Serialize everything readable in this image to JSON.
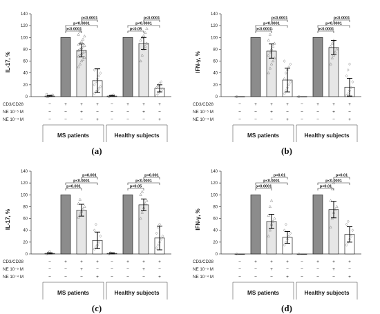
{
  "figure": {
    "row_labels": [
      "CD3/CD28",
      "NE 10⁻⁵ M",
      "NE 10⁻⁴ M"
    ],
    "groups": [
      "MS patients",
      "Healthy subjects"
    ],
    "conditions": [
      {
        "cd3": "−",
        "ne5": "−",
        "ne4": "−"
      },
      {
        "cd3": "+",
        "ne5": "−",
        "ne4": "−"
      },
      {
        "cd3": "+",
        "ne5": "+",
        "ne4": "−"
      },
      {
        "cd3": "+",
        "ne5": "−",
        "ne4": "+"
      }
    ],
    "colors": {
      "control": "#ffffff",
      "stimulated": "#8c8c8c",
      "ne5": "#e6e6e6",
      "ne4": "#ffffff"
    }
  },
  "chart_data": [
    {
      "panel": "(a)",
      "type": "bar",
      "ylabel": "IL-17, %",
      "ylim": [
        0,
        140
      ],
      "yticks": [
        0,
        20,
        40,
        60,
        80,
        100,
        120,
        140
      ],
      "categories": [
        "MS patients",
        "Healthy subjects"
      ],
      "series": [
        {
          "values": [
            1,
            1
          ],
          "errors": [
            1,
            1
          ]
        },
        {
          "values": [
            100,
            100
          ],
          "errors": [
            0,
            0
          ]
        },
        {
          "values": [
            78,
            90
          ],
          "errors": [
            11,
            10
          ]
        },
        {
          "values": [
            27,
            14
          ],
          "errors": [
            20,
            6
          ]
        }
      ],
      "points": [
        [
          [
            0,
            0,
            1,
            2,
            3,
            4
          ]
        ],
        [
          [
            100
          ]
        ],
        [
          [
            50,
            55,
            60,
            63,
            66,
            68,
            70,
            72,
            74,
            76,
            78,
            80,
            82,
            84,
            86,
            88,
            90,
            93,
            97,
            102,
            105,
            110
          ]
        ],
        [
          [
            5,
            8,
            10,
            14,
            17,
            20,
            25,
            30,
            35,
            40,
            45
          ]
        ]
      ],
      "points_hs": [
        [
          [
            0,
            1,
            2,
            3
          ]
        ],
        [
          [
            100
          ]
        ],
        [
          [
            60,
            70,
            80,
            85,
            90,
            95,
            100,
            103,
            108,
            115
          ]
        ],
        [
          [
            2,
            5,
            8,
            10,
            13,
            15,
            18,
            22,
            25
          ]
        ]
      ],
      "markers": [
        "circle",
        "circle",
        "triangle",
        "diamond"
      ],
      "significance": [
        {
          "group": 0,
          "from": 1,
          "to": 2,
          "label": "p<0.0001",
          "level": 0
        },
        {
          "group": 0,
          "from": 1,
          "to": 3,
          "label": "p<0.0001",
          "level": 1
        },
        {
          "group": 0,
          "from": 2,
          "to": 3,
          "label": "p<0.0001",
          "level": 2
        },
        {
          "group": 1,
          "from": 1,
          "to": 2,
          "label": "p<0.05",
          "level": 0
        },
        {
          "group": 1,
          "from": 1,
          "to": 3,
          "label": "p<0.0001",
          "level": 1
        },
        {
          "group": 1,
          "from": 2,
          "to": 3,
          "label": "p<0.0001",
          "level": 2
        }
      ]
    },
    {
      "panel": "(b)",
      "type": "bar",
      "ylabel": "IFN-γ, %",
      "ylim": [
        0,
        140
      ],
      "yticks": [
        0,
        20,
        40,
        60,
        80,
        100,
        120,
        140
      ],
      "categories": [
        "MS patients",
        "Healthy subjects"
      ],
      "series": [
        {
          "values": [
            0,
            0
          ],
          "errors": [
            0,
            0
          ]
        },
        {
          "values": [
            100,
            100
          ],
          "errors": [
            0,
            0
          ]
        },
        {
          "values": [
            77,
            83
          ],
          "errors": [
            12,
            12
          ]
        },
        {
          "values": [
            28,
            16
          ],
          "errors": [
            20,
            15
          ]
        }
      ],
      "points": [
        [
          [
            0
          ]
        ],
        [
          [
            100
          ]
        ],
        [
          [
            40,
            48,
            55,
            60,
            65,
            70,
            75,
            80,
            85,
            90,
            95,
            105,
            115
          ]
        ],
        [
          [
            5,
            10,
            15,
            20,
            25,
            30,
            40,
            45,
            50,
            55,
            60
          ]
        ]
      ],
      "points_hs": [
        [
          [
            0
          ]
        ],
        [
          [
            100
          ]
        ],
        [
          [
            55,
            65,
            70,
            75,
            80,
            85,
            90,
            95
          ]
        ],
        [
          [
            2,
            5,
            10,
            15,
            25,
            35,
            45,
            55
          ]
        ]
      ],
      "markers": [
        "circle",
        "circle",
        "triangle",
        "diamond"
      ],
      "significance": [
        {
          "group": 0,
          "from": 1,
          "to": 2,
          "label": "p<0.0001",
          "level": 0
        },
        {
          "group": 0,
          "from": 1,
          "to": 3,
          "label": "p<0.0001",
          "level": 1
        },
        {
          "group": 0,
          "from": 2,
          "to": 3,
          "label": "p<0.0001",
          "level": 2
        },
        {
          "group": 1,
          "from": 1,
          "to": 2,
          "label": "p<0.0001",
          "level": 0
        },
        {
          "group": 1,
          "from": 1,
          "to": 3,
          "label": "p<0.0001",
          "level": 1
        },
        {
          "group": 1,
          "from": 2,
          "to": 3,
          "label": "p<0.0001",
          "level": 2
        }
      ]
    },
    {
      "panel": "(c)",
      "type": "bar",
      "ylabel": "IL-17, %",
      "ylim": [
        0,
        140
      ],
      "yticks": [
        0,
        20,
        40,
        60,
        80,
        100,
        120,
        140
      ],
      "categories": [
        "MS patients",
        "Healthy subjects"
      ],
      "series": [
        {
          "values": [
            1,
            1
          ],
          "errors": [
            1,
            1
          ]
        },
        {
          "values": [
            100,
            100
          ],
          "errors": [
            0,
            0
          ]
        },
        {
          "values": [
            74,
            83
          ],
          "errors": [
            10,
            10
          ]
        },
        {
          "values": [
            23,
            27
          ],
          "errors": [
            14,
            20
          ]
        }
      ],
      "points": [
        [
          [
            0,
            2,
            4
          ]
        ],
        [
          [
            100
          ]
        ],
        [
          [
            62,
            68,
            72,
            76,
            80,
            85,
            92
          ]
        ],
        [
          [
            8,
            12,
            15,
            20,
            30,
            40,
            50
          ]
        ]
      ],
      "points_hs": [
        [
          [
            0,
            2
          ]
        ],
        [
          [
            100
          ]
        ],
        [
          [
            60,
            70,
            78,
            85,
            90,
            100,
            105
          ]
        ],
        [
          [
            10,
            15,
            20,
            25,
            30,
            35,
            45,
            50
          ]
        ]
      ],
      "markers": [
        "circle",
        "circle",
        "triangle",
        "diamond"
      ],
      "significance": [
        {
          "group": 0,
          "from": 1,
          "to": 2,
          "label": "p<0.001",
          "level": 0
        },
        {
          "group": 0,
          "from": 1,
          "to": 3,
          "label": "p<0.0001",
          "level": 1
        },
        {
          "group": 0,
          "from": 2,
          "to": 3,
          "label": "p<0.001",
          "level": 2
        },
        {
          "group": 1,
          "from": 1,
          "to": 2,
          "label": "p<0.05",
          "level": 0
        },
        {
          "group": 1,
          "from": 1,
          "to": 3,
          "label": "p<0.0001",
          "level": 1
        },
        {
          "group": 1,
          "from": 2,
          "to": 3,
          "label": "p<0.001",
          "level": 2
        }
      ]
    },
    {
      "panel": "(d)",
      "type": "bar",
      "ylabel": "IFN-γ, %",
      "ylim": [
        0,
        140
      ],
      "yticks": [
        0,
        20,
        40,
        60,
        80,
        100,
        120,
        140
      ],
      "categories": [
        "MS patients",
        "Healthy subjects"
      ],
      "series": [
        {
          "values": [
            0,
            0
          ],
          "errors": [
            0,
            0
          ]
        },
        {
          "values": [
            100,
            100
          ],
          "errors": [
            0,
            0
          ]
        },
        {
          "values": [
            55,
            75
          ],
          "errors": [
            12,
            14
          ]
        },
        {
          "values": [
            28,
            33
          ],
          "errors": [
            10,
            13
          ]
        }
      ],
      "points": [
        [
          [
            0
          ]
        ],
        [
          [
            100
          ]
        ],
        [
          [
            30,
            40,
            50,
            55,
            60,
            65,
            80,
            90
          ]
        ],
        [
          [
            15,
            20,
            25,
            30,
            35,
            40,
            50
          ]
        ]
      ],
      "points_hs": [
        [
          [
            0
          ]
        ],
        [
          [
            100
          ]
        ],
        [
          [
            45,
            60,
            70,
            75,
            80,
            90,
            110,
            120
          ]
        ],
        [
          [
            15,
            20,
            25,
            30,
            40,
            50,
            55
          ]
        ]
      ],
      "markers": [
        "circle",
        "circle",
        "triangle",
        "diamond"
      ],
      "significance": [
        {
          "group": 0,
          "from": 1,
          "to": 2,
          "label": "p<0.0001",
          "level": 0
        },
        {
          "group": 0,
          "from": 1,
          "to": 3,
          "label": "p<0.0001",
          "level": 1
        },
        {
          "group": 0,
          "from": 2,
          "to": 3,
          "label": "p<0.01",
          "level": 2
        },
        {
          "group": 1,
          "from": 1,
          "to": 2,
          "label": "p<0.01",
          "level": 0
        },
        {
          "group": 1,
          "from": 1,
          "to": 3,
          "label": "p<0.0001",
          "level": 1
        },
        {
          "group": 1,
          "from": 2,
          "to": 3,
          "label": "p<0.01",
          "level": 2
        }
      ]
    }
  ]
}
